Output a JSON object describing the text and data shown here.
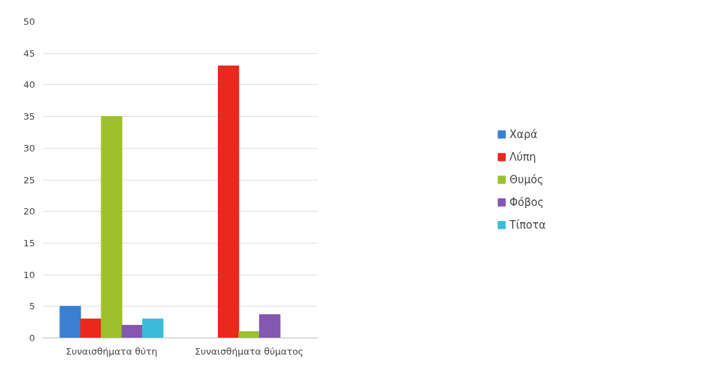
{
  "chart_data": {
    "type": "bar",
    "categories": [
      "Συναισθήματα θύτη",
      "Συναισθήματα θύματος"
    ],
    "series": [
      {
        "name": "Χαρά",
        "color": "#3a7fd0",
        "values": [
          5,
          0
        ]
      },
      {
        "name": "Λύπη",
        "color": "#e8291c",
        "values": [
          3,
          43
        ]
      },
      {
        "name": "Θυμός",
        "color": "#9dc12a",
        "values": [
          35,
          1
        ]
      },
      {
        "name": "Φόβος",
        "color": "#8358b0",
        "values": [
          2,
          3.7
        ]
      },
      {
        "name": "Τίποτα",
        "color": "#3cbcd8",
        "values": [
          3,
          0
        ]
      }
    ],
    "ylim": [
      0,
      50
    ],
    "yticks": [
      0,
      5,
      10,
      15,
      20,
      25,
      30,
      35,
      40,
      45,
      50
    ],
    "grid": "y",
    "legend": "right"
  }
}
